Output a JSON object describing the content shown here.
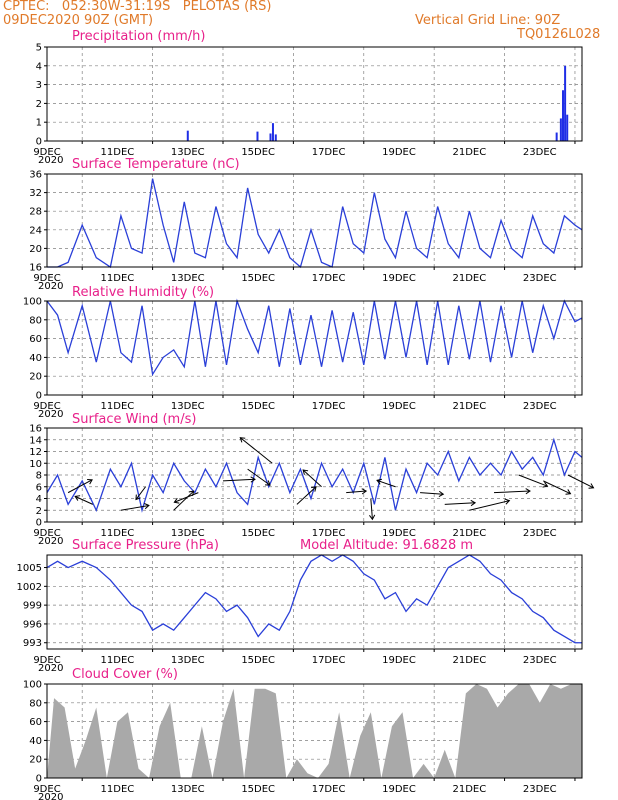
{
  "header": {
    "left_line1": "CPTEC:   052:30W-31:19S   PELOTAS (RS)",
    "left_line2": "09DEC2020 90Z (GMT)",
    "right_line1": "Vertical Grid Line: 90Z",
    "right_line2": "TQ0126L028"
  },
  "colors": {
    "header": "#e07a2a",
    "title": "#e8208a",
    "line": "#2a3fd8",
    "bar": "#1f2ee6",
    "cloud": "#a9a9a9"
  },
  "x_axis": {
    "range_days": [
      0,
      15.2
    ],
    "tick_labels": [
      "9DEC",
      "11DEC",
      "13DEC",
      "15DEC",
      "17DEC",
      "19DEC",
      "21DEC",
      "23DEC"
    ],
    "year_label": "2020"
  },
  "chart_data": [
    {
      "type": "bar",
      "title": "Precipitation (mm/h)",
      "ylim": [
        0,
        5
      ],
      "yticks": [
        "0",
        "1",
        "2",
        "3",
        "4",
        "5"
      ],
      "series": [
        {
          "x": [
            4.0,
            5.98,
            6.35,
            6.42,
            6.5,
            14.48,
            14.6,
            14.66,
            14.72,
            14.78
          ],
          "values": [
            0.55,
            0.5,
            0.4,
            0.95,
            0.35,
            0.45,
            1.2,
            2.7,
            4.0,
            1.4
          ]
        }
      ]
    },
    {
      "type": "line",
      "title": "Surface Temperature (nC)",
      "ylim": [
        16,
        36
      ],
      "yticks": [
        "16",
        "20",
        "24",
        "28",
        "32",
        "36"
      ],
      "series": [
        {
          "x": [
            0,
            0.3,
            0.6,
            1.0,
            1.4,
            1.8,
            2.1,
            2.4,
            2.7,
            3.0,
            3.3,
            3.6,
            3.9,
            4.2,
            4.5,
            4.8,
            5.1,
            5.4,
            5.7,
            6.0,
            6.3,
            6.6,
            6.9,
            7.2,
            7.5,
            7.8,
            8.1,
            8.4,
            8.7,
            9.0,
            9.3,
            9.6,
            9.9,
            10.2,
            10.5,
            10.8,
            11.1,
            11.4,
            11.7,
            12.0,
            12.3,
            12.6,
            12.9,
            13.2,
            13.5,
            13.8,
            14.1,
            14.4,
            14.7,
            15.0,
            15.2
          ],
          "values": [
            16,
            16,
            17,
            25,
            18,
            16,
            27,
            20,
            19,
            35,
            25,
            17,
            30,
            19,
            18,
            29,
            21,
            18,
            33,
            23,
            19,
            24,
            18,
            16,
            24,
            17,
            16,
            29,
            21,
            19,
            32,
            22,
            18,
            28,
            20,
            18,
            29,
            21,
            18,
            28,
            20,
            18,
            26,
            20,
            18,
            27,
            21,
            19,
            27,
            25,
            24
          ]
        }
      ]
    },
    {
      "type": "line",
      "title": "Relative Humidity (%)",
      "ylim": [
        0,
        100
      ],
      "yticks": [
        "0",
        "20",
        "40",
        "60",
        "80",
        "100"
      ],
      "series": [
        {
          "x": [
            0,
            0.3,
            0.6,
            1.0,
            1.4,
            1.8,
            2.1,
            2.4,
            2.7,
            3.0,
            3.3,
            3.6,
            3.9,
            4.2,
            4.5,
            4.8,
            5.1,
            5.4,
            5.7,
            6.0,
            6.3,
            6.6,
            6.9,
            7.2,
            7.5,
            7.8,
            8.1,
            8.4,
            8.7,
            9.0,
            9.3,
            9.6,
            9.9,
            10.2,
            10.5,
            10.8,
            11.1,
            11.4,
            11.7,
            12.0,
            12.3,
            12.6,
            12.9,
            13.2,
            13.5,
            13.8,
            14.1,
            14.4,
            14.7,
            15.0,
            15.2
          ],
          "values": [
            100,
            85,
            45,
            95,
            35,
            100,
            45,
            35,
            95,
            22,
            40,
            48,
            30,
            100,
            30,
            100,
            32,
            100,
            70,
            45,
            95,
            30,
            92,
            32,
            85,
            30,
            90,
            35,
            88,
            32,
            100,
            38,
            100,
            40,
            100,
            32,
            100,
            32,
            95,
            38,
            100,
            35,
            95,
            40,
            100,
            45,
            95,
            60,
            100,
            78,
            82
          ]
        }
      ]
    },
    {
      "type": "line",
      "title": "Surface Wind (m/s)",
      "ylim": [
        0,
        16
      ],
      "yticks": [
        "0",
        "2",
        "4",
        "6",
        "8",
        "10",
        "12",
        "14",
        "16"
      ],
      "series": [
        {
          "x": [
            0,
            0.3,
            0.6,
            1.0,
            1.4,
            1.8,
            2.1,
            2.4,
            2.7,
            3.0,
            3.3,
            3.6,
            3.9,
            4.2,
            4.5,
            4.8,
            5.1,
            5.4,
            5.7,
            6.0,
            6.3,
            6.6,
            6.9,
            7.2,
            7.5,
            7.8,
            8.1,
            8.4,
            8.7,
            9.0,
            9.3,
            9.6,
            9.9,
            10.2,
            10.5,
            10.8,
            11.1,
            11.4,
            11.7,
            12.0,
            12.3,
            12.6,
            12.9,
            13.2,
            13.5,
            13.8,
            14.1,
            14.4,
            14.7,
            15.0,
            15.2
          ],
          "values": [
            5,
            8,
            3,
            7,
            2,
            9,
            6,
            10,
            2,
            8,
            5,
            10,
            7,
            5,
            9,
            6,
            10,
            5,
            3,
            11,
            6,
            10,
            5,
            9,
            4,
            10,
            6,
            9,
            5,
            10,
            3,
            11,
            2,
            9,
            5,
            10,
            8,
            12,
            7,
            11,
            8,
            10,
            8,
            12,
            9,
            11,
            8,
            14,
            8,
            12,
            11
          ]
        }
      ]
    },
    {
      "type": "line",
      "title": "Surface Pressure (hPa)",
      "annotation": "Model Altitude: 91.6828  m",
      "ylim": [
        992,
        1007
      ],
      "yticks": [
        "993",
        "996",
        "999",
        "1002",
        "1005"
      ],
      "series": [
        {
          "x": [
            0,
            0.3,
            0.6,
            1.0,
            1.4,
            1.8,
            2.1,
            2.4,
            2.7,
            3.0,
            3.3,
            3.6,
            3.9,
            4.2,
            4.5,
            4.8,
            5.1,
            5.4,
            5.7,
            6.0,
            6.3,
            6.6,
            6.9,
            7.2,
            7.5,
            7.8,
            8.1,
            8.4,
            8.7,
            9.0,
            9.3,
            9.6,
            9.9,
            10.2,
            10.5,
            10.8,
            11.1,
            11.4,
            11.7,
            12.0,
            12.3,
            12.6,
            12.9,
            13.2,
            13.5,
            13.8,
            14.1,
            14.4,
            14.7,
            15.0,
            15.2
          ],
          "values": [
            1005,
            1006,
            1005,
            1006,
            1005,
            1003,
            1001,
            999,
            998,
            995,
            996,
            995,
            997,
            999,
            1001,
            1000,
            998,
            999,
            997,
            994,
            996,
            995,
            998,
            1003,
            1006,
            1007,
            1006,
            1007,
            1006,
            1004,
            1003,
            1000,
            1001,
            998,
            1000,
            999,
            1002,
            1005,
            1006,
            1007,
            1006,
            1004,
            1003,
            1001,
            1000,
            998,
            997,
            995,
            994,
            993,
            993
          ]
        }
      ]
    },
    {
      "type": "area",
      "title": "Cloud Cover (%)",
      "ylim": [
        0,
        100
      ],
      "yticks": [
        "0",
        "20",
        "40",
        "60",
        "80",
        "100"
      ],
      "series": [
        {
          "x": [
            0,
            0.2,
            0.5,
            0.8,
            1.1,
            1.4,
            1.7,
            2.0,
            2.3,
            2.6,
            2.9,
            3.2,
            3.5,
            3.8,
            4.1,
            4.4,
            4.7,
            5.0,
            5.3,
            5.6,
            5.9,
            6.2,
            6.5,
            6.8,
            7.1,
            7.4,
            7.7,
            8.0,
            8.3,
            8.6,
            8.9,
            9.2,
            9.5,
            9.8,
            10.1,
            10.4,
            10.7,
            11.0,
            11.3,
            11.6,
            11.9,
            12.2,
            12.5,
            12.8,
            13.1,
            13.4,
            13.7,
            14.0,
            14.3,
            14.6,
            14.9,
            15.2
          ],
          "values": [
            0,
            85,
            75,
            10,
            40,
            75,
            0,
            60,
            70,
            10,
            0,
            55,
            80,
            0,
            0,
            55,
            0,
            60,
            95,
            0,
            95,
            95,
            90,
            0,
            20,
            5,
            0,
            15,
            70,
            0,
            45,
            70,
            0,
            55,
            70,
            0,
            15,
            0,
            30,
            0,
            90,
            100,
            95,
            75,
            90,
            100,
            100,
            80,
            100,
            95,
            100,
            100
          ]
        }
      ]
    }
  ],
  "wind_vectors": {
    "x": [
      0.6,
      1.3,
      2.1,
      2.8,
      3.6,
      4.3,
      5.0,
      5.7,
      6.4,
      7.1,
      7.8,
      8.5,
      9.2,
      9.9,
      10.6,
      11.3,
      12.0,
      12.7,
      13.4,
      14.1,
      14.8
    ],
    "u": [
      3.0,
      -2.2,
      3.5,
      -1.2,
      2.5,
      -3.0,
      4.0,
      2.8,
      -4.0,
      2.4,
      -2.3,
      2.5,
      0.2,
      -2.3,
      2.9,
      3.8,
      5.0,
      4.5,
      3.6,
      3.4,
      3.2
    ],
    "v": [
      1.6,
      1.0,
      0.6,
      -1.6,
      2.4,
      -1.2,
      0.2,
      -2.0,
      3.2,
      2.2,
      2.1,
      0.2,
      -2.6,
      0.8,
      -0.2,
      0.2,
      1.2,
      0.2,
      -1.4,
      -1.6,
      -1.6
    ]
  }
}
